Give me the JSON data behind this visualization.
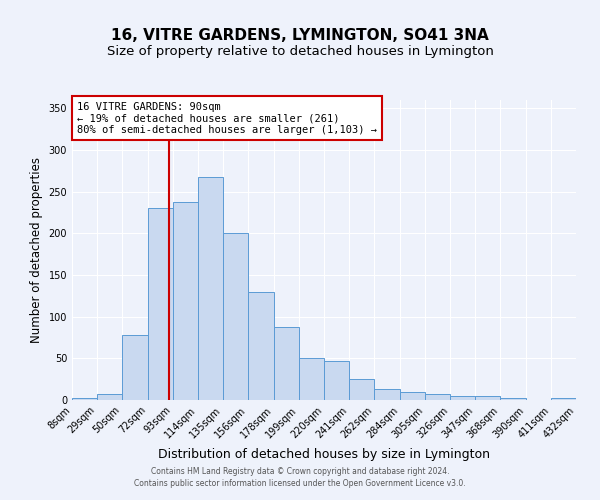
{
  "title": "16, VITRE GARDENS, LYMINGTON, SO41 3NA",
  "subtitle": "Size of property relative to detached houses in Lymington",
  "xlabel": "Distribution of detached houses by size in Lymington",
  "ylabel": "Number of detached properties",
  "bar_labels": [
    "8sqm",
    "29sqm",
    "50sqm",
    "72sqm",
    "93sqm",
    "114sqm",
    "135sqm",
    "156sqm",
    "178sqm",
    "199sqm",
    "220sqm",
    "241sqm",
    "262sqm",
    "284sqm",
    "305sqm",
    "326sqm",
    "347sqm",
    "368sqm",
    "390sqm",
    "411sqm",
    "432sqm"
  ],
  "bar_values": [
    2,
    7,
    78,
    230,
    238,
    268,
    200,
    130,
    88,
    50,
    47,
    25,
    13,
    10,
    7,
    5,
    5,
    2,
    0,
    2
  ],
  "bin_edges": [
    8,
    29,
    50,
    72,
    93,
    114,
    135,
    156,
    178,
    199,
    220,
    241,
    262,
    284,
    305,
    326,
    347,
    368,
    390,
    411,
    432
  ],
  "bar_color": "#c9d9f0",
  "bar_edge_color": "#5b9bd5",
  "vline_x": 90,
  "vline_color": "#cc0000",
  "annotation_text": "16 VITRE GARDENS: 90sqm\n← 19% of detached houses are smaller (261)\n80% of semi-detached houses are larger (1,103) →",
  "annotation_box_color": "#ffffff",
  "annotation_box_edge": "#cc0000",
  "ylim": [
    0,
    360
  ],
  "yticks": [
    0,
    50,
    100,
    150,
    200,
    250,
    300,
    350
  ],
  "footer_line1": "Contains HM Land Registry data © Crown copyright and database right 2024.",
  "footer_line2": "Contains public sector information licensed under the Open Government Licence v3.0.",
  "background_color": "#eef2fb",
  "grid_color": "#ffffff",
  "title_fontsize": 11,
  "subtitle_fontsize": 9.5,
  "tick_fontsize": 7,
  "ylabel_fontsize": 8.5,
  "xlabel_fontsize": 9
}
